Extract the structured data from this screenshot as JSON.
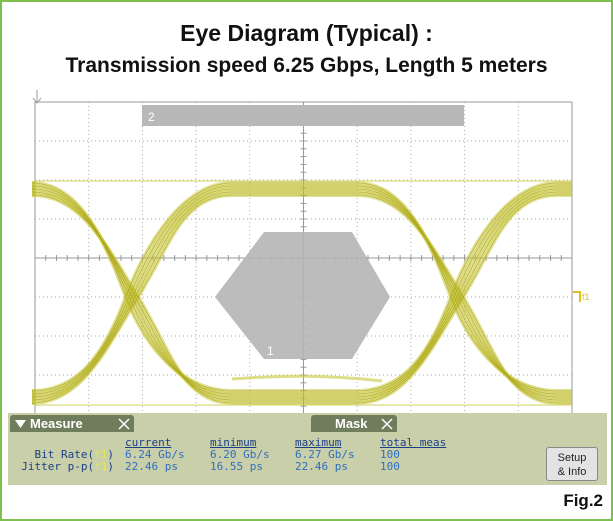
{
  "header": {
    "title": [
      "Eye Diagram (Typical) :",
      "Transmission speed 6.25 Gbps, Length 5 meters"
    ]
  },
  "screen": {
    "mask_bar_label": "2",
    "mask_region_label": "1",
    "trigger_marker": "f1"
  },
  "measure_panel": {
    "tabs": [
      "Measure",
      "Mask"
    ],
    "columns": [
      "current",
      "minimum",
      "maximum",
      "total meas"
    ],
    "rows": [
      {
        "prefix": "Bit Rate(",
        "source": "f1",
        "suffix": ")",
        "cells": [
          "6.24 Gb/s",
          "6.20 Gb/s",
          "6.27 Gb/s",
          "100"
        ]
      },
      {
        "prefix": "Jitter p-p(",
        "source": "f1",
        "suffix": ")",
        "cells": [
          "22.46 ps",
          "16.55 ps",
          "22.46 ps",
          "100"
        ]
      }
    ],
    "button": [
      "Setup",
      "& Info"
    ]
  },
  "figure_label": "Fig.2"
}
